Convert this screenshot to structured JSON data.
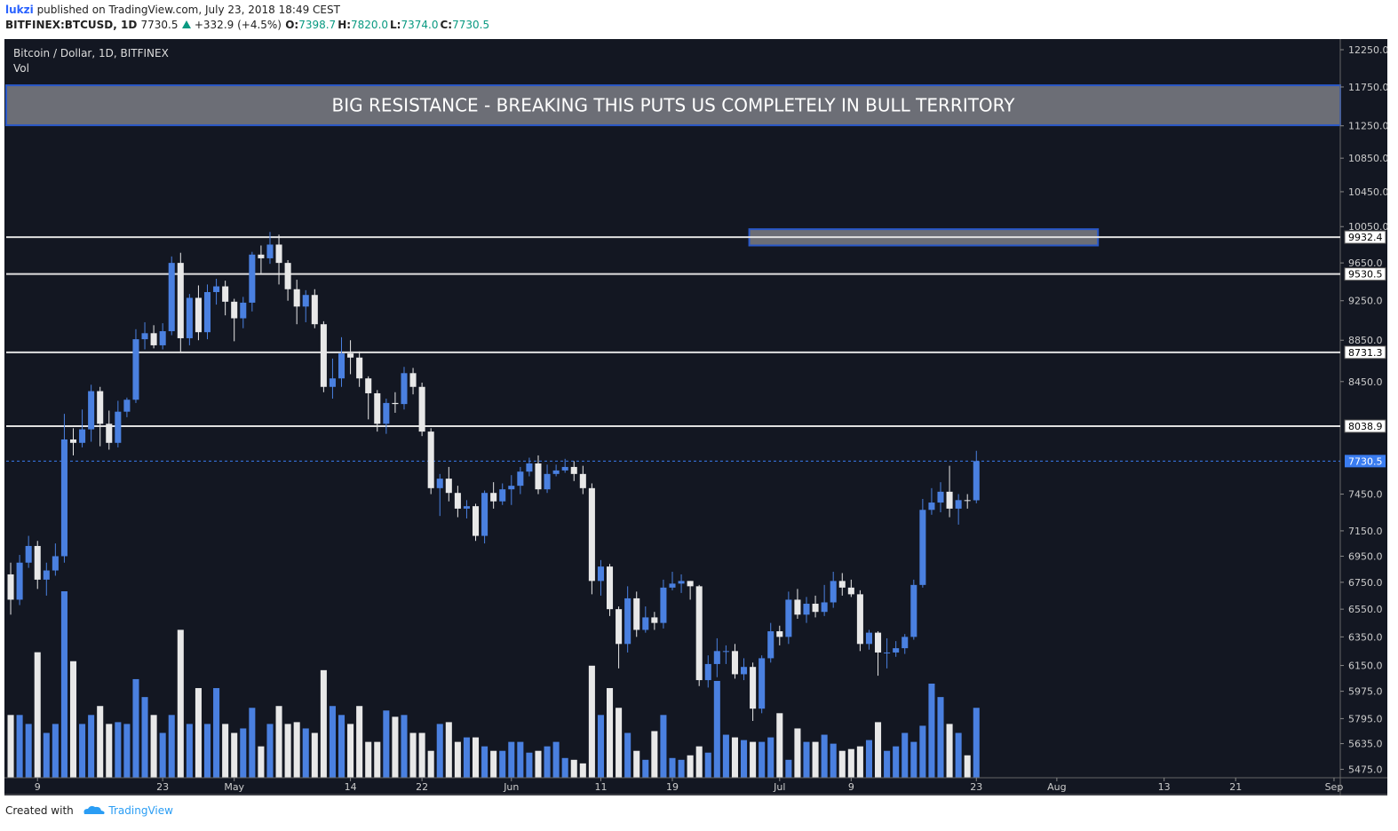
{
  "header": {
    "author": "lukzi",
    "published": "published on TradingView.com, July 23, 2018 18:49 CEST",
    "symbol": "BITFINEX:BTCUSD, 1D",
    "last": "7730.5",
    "change": "+332.9 (+4.5%)",
    "ohlc": [
      {
        "key": "O:",
        "value": "7398.7"
      },
      {
        "key": "H:",
        "value": "7820.0"
      },
      {
        "key": "L:",
        "value": "7374.0"
      },
      {
        "key": "C:",
        "value": "7730.5"
      }
    ]
  },
  "chart_data": {
    "type": "candlestick",
    "title": "Bitcoin / Dollar, 1D, BITFINEX",
    "volume_label": "Vol",
    "log_scale": true,
    "up_color": "#4a80e0",
    "down_color": "#e8e8e8",
    "background": "#131722",
    "xlim": [
      -0.5,
      148.7
    ],
    "ylim": [
      5424,
      12397
    ],
    "xticks": [
      {
        "value": 3,
        "label": "9"
      },
      {
        "value": 17,
        "label": "23"
      },
      {
        "value": 25,
        "label": "May"
      },
      {
        "value": 38,
        "label": "14"
      },
      {
        "value": 46,
        "label": "22"
      },
      {
        "value": 56,
        "label": "Jun"
      },
      {
        "value": 66,
        "label": "11"
      },
      {
        "value": 74,
        "label": "19"
      },
      {
        "value": 86,
        "label": "Jul"
      },
      {
        "value": 94,
        "label": "9"
      },
      {
        "value": 108,
        "label": "23"
      },
      {
        "value": 117,
        "label": "Aug"
      },
      {
        "value": 129,
        "label": "13"
      },
      {
        "value": 137,
        "label": "21"
      },
      {
        "value": 148,
        "label": "Sep"
      }
    ],
    "yticks": [
      {
        "value": 12250,
        "label": "12250.0"
      },
      {
        "value": 11750,
        "label": "11750.0"
      },
      {
        "value": 11250,
        "label": "11250.0"
      },
      {
        "value": 10850,
        "label": "10850.0"
      },
      {
        "value": 10450,
        "label": "10450.0"
      },
      {
        "value": 10050,
        "label": "10050.0"
      },
      {
        "value": 9650,
        "label": "9650.0"
      },
      {
        "value": 9250,
        "label": "9250.0"
      },
      {
        "value": 8850,
        "label": "8850.0"
      },
      {
        "value": 8450,
        "label": "8450.0"
      },
      {
        "value": 7450,
        "label": "7450.0"
      },
      {
        "value": 7150,
        "label": "7150.0"
      },
      {
        "value": 6950,
        "label": "6950.0"
      },
      {
        "value": 6750,
        "label": "6750.0"
      },
      {
        "value": 6550,
        "label": "6550.0"
      },
      {
        "value": 6350,
        "label": "6350.0"
      },
      {
        "value": 6150,
        "label": "6150.0"
      },
      {
        "value": 5975,
        "label": "5975.0"
      },
      {
        "value": 5795,
        "label": "5795.0"
      },
      {
        "value": 5635,
        "label": "5635.0"
      },
      {
        "value": 5475,
        "label": "5475.0"
      }
    ],
    "open": [
      6810,
      6620,
      6900,
      7030,
      6770,
      6840,
      6950,
      7920,
      7890,
      8010,
      8360,
      8060,
      7890,
      8170,
      8280,
      8860,
      8920,
      8800,
      8940,
      9650,
      8870,
      9280,
      8930,
      9340,
      9400,
      9240,
      9070,
      9230,
      9740,
      9700,
      9850,
      9650,
      9370,
      9190,
      9310,
      9010,
      8400,
      8480,
      8720,
      8680,
      8480,
      8340,
      8060,
      8250,
      8240,
      8530,
      8400,
      7990,
      7500,
      7580,
      7460,
      7330,
      7350,
      7110,
      7460,
      7390,
      7490,
      7520,
      7640,
      7710,
      7490,
      7620,
      7650,
      7680,
      7620,
      7500,
      6760,
      6870,
      6550,
      6300,
      6630,
      6400,
      6490,
      6450,
      6710,
      6740,
      6760,
      6720,
      6050,
      6160,
      6250,
      6250,
      6090,
      6140,
      5860,
      6200,
      6390,
      6350,
      6620,
      6510,
      6590,
      6530,
      6600,
      6760,
      6710,
      6660,
      6300,
      6380,
      6240,
      6240,
      6270,
      6350,
      6730,
      7320,
      7380,
      7470,
      7330,
      7400,
      7398.7
    ],
    "high": [
      6900,
      6960,
      7110,
      7070,
      6900,
      7050,
      8150,
      8020,
      8190,
      8420,
      8400,
      8180,
      8270,
      8300,
      8960,
      9030,
      9000,
      9020,
      9720,
      9760,
      9320,
      9410,
      9420,
      9480,
      9460,
      9270,
      9290,
      9770,
      9840,
      9990,
      9960,
      9680,
      9470,
      9360,
      9370,
      9040,
      8670,
      8880,
      8850,
      8740,
      8500,
      8370,
      8290,
      8350,
      8590,
      8580,
      8440,
      8020,
      7620,
      7680,
      7520,
      7400,
      7370,
      7480,
      7550,
      7540,
      7610,
      7680,
      7760,
      7780,
      7700,
      7700,
      7750,
      7730,
      7690,
      7540,
      6920,
      6890,
      6570,
      6720,
      6680,
      6570,
      6530,
      6770,
      6830,
      6810,
      6760,
      6730,
      6220,
      6340,
      6290,
      6300,
      6200,
      6170,
      6220,
      6450,
      6430,
      6680,
      6700,
      6640,
      6650,
      6730,
      6830,
      6820,
      6770,
      6690,
      6400,
      6390,
      6340,
      6320,
      6370,
      6770,
      7410,
      7500,
      7550,
      7690,
      7450,
      7450,
      7820
    ],
    "low": [
      6510,
      6580,
      6860,
      6700,
      6650,
      6800,
      6900,
      7780,
      7850,
      7900,
      7860,
      7830,
      7850,
      8120,
      8250,
      8760,
      8770,
      8760,
      8900,
      8730,
      8800,
      8850,
      8860,
      9210,
      9100,
      8840,
      8970,
      9140,
      9540,
      9640,
      9420,
      9250,
      9010,
      9030,
      8970,
      8350,
      8290,
      8400,
      8520,
      8400,
      8100,
      7990,
      7970,
      8160,
      8190,
      8330,
      7950,
      7450,
      7270,
      7390,
      7260,
      7250,
      7070,
      7050,
      7330,
      7360,
      7360,
      7450,
      7600,
      7450,
      7460,
      7600,
      7630,
      7560,
      7450,
      6660,
      6650,
      6500,
      6130,
      6240,
      6350,
      6380,
      6400,
      6410,
      6690,
      6670,
      6620,
      6010,
      6000,
      6070,
      6160,
      6060,
      6050,
      5780,
      5830,
      6170,
      6290,
      6300,
      6480,
      6450,
      6490,
      6500,
      6560,
      6650,
      6640,
      6250,
      6260,
      6080,
      6130,
      6210,
      6230,
      6330,
      6710,
      7280,
      7300,
      7260,
      7200,
      7330,
      7374
    ],
    "close": [
      6620,
      6900,
      7030,
      6770,
      6840,
      6950,
      7920,
      7890,
      8010,
      8360,
      8060,
      7890,
      8170,
      8280,
      8860,
      8920,
      8800,
      8940,
      9650,
      8870,
      9280,
      8930,
      9340,
      9400,
      9240,
      9070,
      9230,
      9740,
      9700,
      9850,
      9650,
      9370,
      9190,
      9310,
      9010,
      8400,
      8480,
      8720,
      8680,
      8480,
      8340,
      8060,
      8250,
      8240,
      8530,
      8400,
      7990,
      7500,
      7580,
      7460,
      7330,
      7350,
      7110,
      7460,
      7390,
      7490,
      7520,
      7640,
      7710,
      7490,
      7620,
      7650,
      7680,
      7620,
      7500,
      6760,
      6870,
      6550,
      6300,
      6630,
      6400,
      6490,
      6450,
      6710,
      6740,
      6760,
      6720,
      6050,
      6160,
      6250,
      6250,
      6090,
      6140,
      5860,
      6200,
      6390,
      6350,
      6620,
      6510,
      6590,
      6530,
      6600,
      6760,
      6710,
      6660,
      6300,
      6380,
      6240,
      6240,
      6270,
      6350,
      6730,
      7320,
      7380,
      7470,
      7330,
      7400,
      7398.7,
      7730.5
    ],
    "volume": [
      70,
      70,
      60,
      140,
      50,
      60,
      208,
      130,
      60,
      70,
      80,
      60,
      62,
      60,
      110,
      90,
      70,
      50,
      70,
      165,
      60,
      100,
      60,
      100,
      60,
      50,
      55,
      78,
      35,
      60,
      80,
      60,
      62,
      55,
      50,
      120,
      80,
      70,
      60,
      80,
      40,
      40,
      75,
      68,
      70,
      50,
      50,
      30,
      60,
      62,
      40,
      45,
      45,
      35,
      30,
      30,
      40,
      40,
      28,
      30,
      35,
      40,
      22,
      20,
      16,
      125,
      70,
      100,
      78,
      50,
      30,
      20,
      52,
      70,
      22,
      20,
      25,
      35,
      28,
      108,
      48,
      45,
      42,
      40,
      40,
      45,
      72,
      20,
      55,
      40,
      40,
      48,
      38,
      30,
      32,
      35,
      42,
      62,
      30,
      35,
      50,
      40,
      58,
      105,
      90,
      60,
      50,
      25,
      78
    ],
    "levels": [
      9932.4,
      9530.5,
      8731.3,
      8038.9
    ],
    "last_price": 7730.5,
    "zones": [
      {
        "x": [
          -0.5,
          148.7
        ],
        "y": [
          11257,
          11772
        ],
        "label": "BIG RESISTANCE - BREAKING THIS PUTS US COMPLETELY IN BULL TERRITORY"
      },
      {
        "x": [
          82.6,
          121.6
        ],
        "y": [
          9840,
          10021
        ]
      }
    ]
  },
  "footer": {
    "created": "Created with",
    "brand": "TradingView"
  }
}
